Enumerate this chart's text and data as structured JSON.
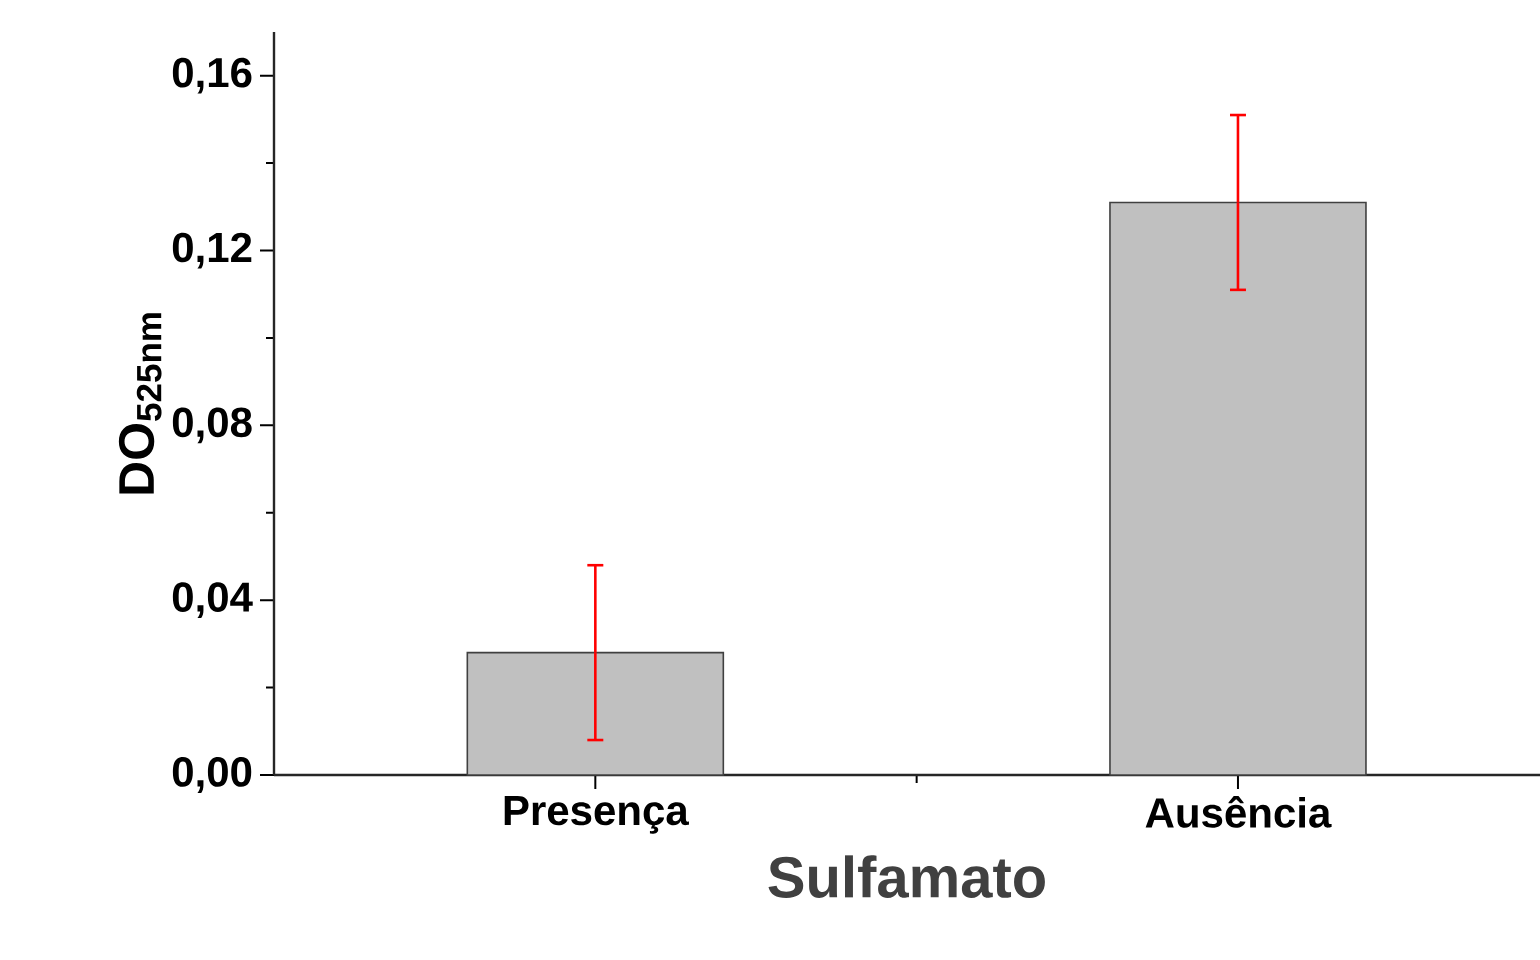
{
  "chart_data": {
    "type": "bar",
    "xlabel": "Sulfamato",
    "ylabel": "DO$_{525nm}$",
    "categories": [
      "Presença",
      "Ausência"
    ],
    "values": [
      0.028,
      0.131
    ],
    "errors": [
      0.02,
      0.02
    ],
    "color": "#c0c0c0",
    "ylim": [
      0,
      0.17
    ],
    "yticks": [
      {
        "value": 0,
        "label": "0,00"
      },
      {
        "value": 0.04,
        "label": "0,04"
      },
      {
        "value": 0.08,
        "label": "0,08"
      },
      {
        "value": 0.12,
        "label": "0,12"
      },
      {
        "value": 0.16,
        "label": "0,16"
      }
    ],
    "grid": false
  }
}
